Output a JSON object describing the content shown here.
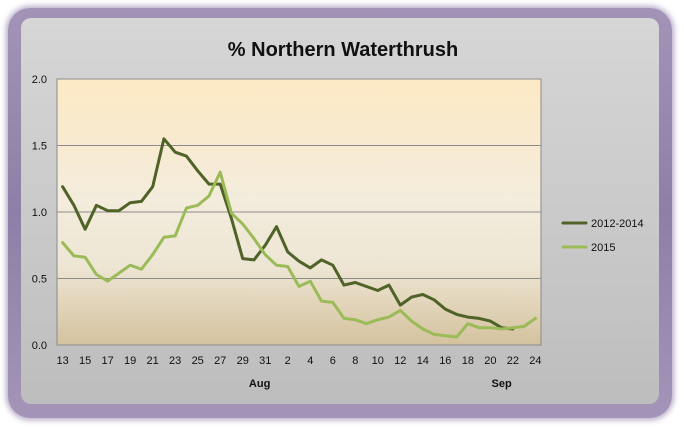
{
  "chart_data": {
    "type": "line",
    "title": "% Northern Waterthrush",
    "xlabel": "",
    "ylabel": "",
    "ylim": [
      0,
      2.0
    ],
    "y_ticks": [
      "0.0",
      "0.5",
      "1.0",
      "1.5",
      "2.0"
    ],
    "x_tick_labels": [
      "13",
      "15",
      "17",
      "19",
      "21",
      "23",
      "25",
      "27",
      "29",
      "31",
      "2",
      "4",
      "6",
      "8",
      "10",
      "12",
      "14",
      "16",
      "18",
      "20",
      "22",
      "24"
    ],
    "month_labels": [
      "Aug",
      "Sep"
    ],
    "grid": true,
    "legend_position": "right",
    "x": [
      "Jul 13",
      "Jul 14",
      "Jul 15",
      "Jul 16",
      "Jul 17",
      "Jul 18",
      "Jul 19",
      "Jul 20",
      "Jul 21",
      "Jul 22",
      "Jul 23",
      "Jul 24",
      "Jul 25",
      "Jul 26",
      "Jul 27",
      "Jul 28",
      "Jul 29",
      "Jul 30",
      "Jul 31",
      "Aug 1",
      "Aug 2",
      "Aug 3",
      "Aug 4",
      "Aug 5",
      "Aug 6",
      "Aug 7",
      "Aug 8",
      "Aug 9",
      "Aug 10",
      "Aug 11",
      "Aug 12",
      "Aug 13",
      "Aug 14",
      "Aug 15",
      "Aug 16",
      "Aug 17",
      "Aug 18",
      "Aug 19",
      "Aug 20",
      "Aug 21",
      "Aug 22",
      "Aug 23",
      "Aug 24"
    ],
    "series": [
      {
        "name": "2012-2014",
        "color": "#4f6228",
        "values": [
          1.19,
          1.05,
          0.87,
          1.05,
          1.01,
          1.01,
          1.07,
          1.08,
          1.19,
          1.55,
          1.45,
          1.42,
          1.31,
          1.21,
          1.21,
          0.95,
          0.65,
          0.64,
          0.75,
          0.89,
          0.7,
          0.63,
          0.58,
          0.64,
          0.6,
          0.45,
          0.47,
          0.44,
          0.41,
          0.45,
          0.3,
          0.36,
          0.38,
          0.34,
          0.27,
          0.23,
          0.21,
          0.2,
          0.18,
          0.13,
          0.12,
          null,
          null
        ]
      },
      {
        "name": "2015",
        "color": "#9bbb59",
        "values": [
          0.77,
          0.67,
          0.66,
          0.53,
          0.48,
          0.54,
          0.6,
          0.57,
          0.68,
          0.81,
          0.82,
          1.03,
          1.05,
          1.12,
          1.3,
          0.99,
          0.91,
          0.8,
          0.68,
          0.6,
          0.59,
          0.44,
          0.48,
          0.33,
          0.32,
          0.2,
          0.19,
          0.16,
          0.19,
          0.21,
          0.26,
          0.18,
          0.12,
          0.08,
          0.07,
          0.06,
          0.16,
          0.13,
          0.13,
          0.12,
          0.13,
          0.14,
          0.2
        ]
      }
    ]
  }
}
